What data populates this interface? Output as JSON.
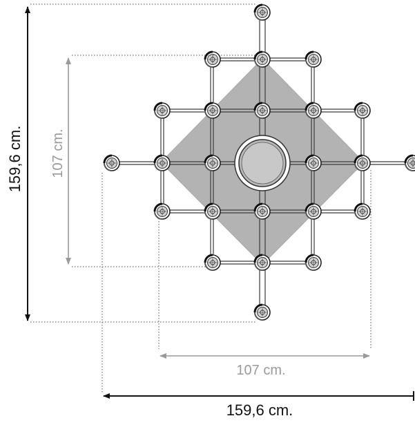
{
  "dimensions": {
    "outer_height": "159,6 cm.",
    "inner_height": "107 cm.",
    "inner_width": "107 cm.",
    "outer_width": "159,6 cm."
  },
  "colors": {
    "outer_dimension": "#111111",
    "inner_dimension": "#9a9a9a",
    "diamond_fill": "#b3b3b3",
    "frame": "#333333",
    "background": "#ffffff"
  },
  "icons": {
    "lamp": "lamp-head-icon",
    "center": "center-disc-icon"
  }
}
